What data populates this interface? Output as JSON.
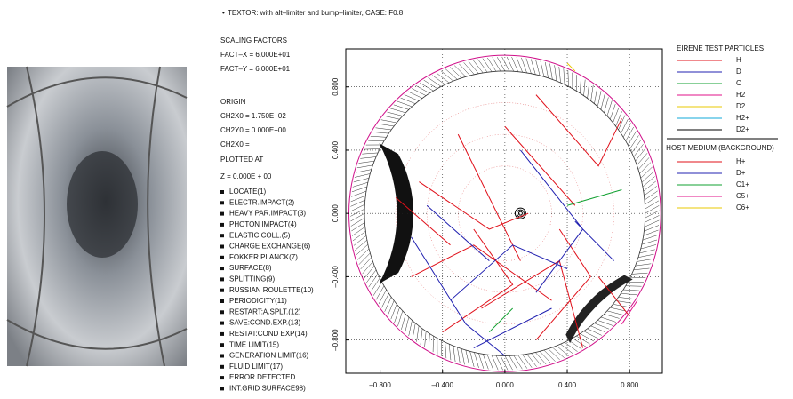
{
  "chart_data": {
    "type": "trajectory",
    "title": "TEXTOR: with alt–limiter and bump–limiter, CASE: F0.8",
    "xlim": [
      -1.02,
      1.01
    ],
    "ylim": [
      -1.01,
      1.04
    ],
    "xticks": [
      {
        "value": -0.8,
        "label": "–0.800"
      },
      {
        "value": -0.4,
        "label": "–0.400"
      },
      {
        "value": 0,
        "label": "0.000"
      },
      {
        "value": 0.4,
        "label": "0.400"
      },
      {
        "value": 0.8,
        "label": "0.800"
      }
    ],
    "yticks": [
      {
        "value": -0.8,
        "label": "–0.800"
      },
      {
        "value": -0.4,
        "label": "–0.400"
      },
      {
        "value": 0,
        "label": "0.000"
      },
      {
        "value": 0.4,
        "label": "0.400"
      },
      {
        "value": 0.8,
        "label": "0.800"
      }
    ],
    "grid": true,
    "legend_title": "EIRENE TEST PARTICLES",
    "series": [
      {
        "name": "H",
        "color": "#e0101a",
        "x": [
          -0.55,
          -0.1,
          0.15,
          null,
          -0.6,
          -0.2,
          0.3,
          null,
          -0.3,
          0.1,
          null,
          0.2,
          0.6,
          0.75,
          null,
          -0.4,
          0.05,
          -0.2,
          null,
          0.35,
          0.55,
          0.2,
          null,
          -0.7,
          -0.35,
          null,
          0.0,
          0.45,
          null,
          0.6,
          0.8,
          null,
          -0.15,
          0.35,
          0.5
        ],
        "values": [
          0.2,
          -0.1,
          0.0,
          null,
          -0.4,
          -0.2,
          -0.55,
          null,
          0.5,
          -0.3,
          null,
          0.75,
          0.3,
          0.6,
          null,
          -0.75,
          -0.45,
          -0.1,
          null,
          -0.1,
          -0.4,
          -0.8,
          null,
          0.1,
          -0.2,
          null,
          0.55,
          0.05,
          null,
          -0.4,
          -0.65,
          null,
          -0.6,
          -0.3,
          -0.85
        ]
      },
      {
        "name": "D",
        "color": "#2020b0",
        "x": [
          -0.35,
          0.05,
          0.4,
          null,
          -0.5,
          -0.1,
          null,
          0.1,
          0.5,
          0.2,
          null,
          -0.2,
          0.3,
          null,
          0.45,
          0.7,
          null,
          -0.6,
          -0.25,
          0.0
        ],
        "values": [
          -0.55,
          -0.2,
          -0.35,
          null,
          0.05,
          -0.3,
          null,
          0.4,
          -0.1,
          -0.5,
          null,
          -0.85,
          -0.6,
          null,
          -0.05,
          -0.3,
          null,
          -0.15,
          -0.7,
          -0.9
        ]
      },
      {
        "name": "C",
        "color": "#10a030",
        "x": [
          0.4,
          0.75,
          null,
          -0.1,
          0.05
        ],
        "values": [
          0.05,
          0.15,
          null,
          -0.75,
          -0.6
        ]
      },
      {
        "name": "H2",
        "color": "#e0108a",
        "x": [
          0.75,
          0.85
        ],
        "values": [
          -0.7,
          -0.55
        ]
      },
      {
        "name": "D2",
        "color": "#e8c800",
        "x": [
          0.4,
          0.45
        ],
        "values": [
          0.95,
          0.9
        ]
      },
      {
        "name": "H2+",
        "color": "#10a8d8",
        "x": [],
        "values": []
      },
      {
        "name": "D2+",
        "color": "#000000",
        "x": [],
        "values": []
      }
    ],
    "host_medium": {
      "title": "HOST MEDIUM (BACKGROUND)",
      "items": [
        {
          "name": "H+",
          "color": "#e0101a"
        },
        {
          "name": "D+",
          "color": "#2020b0"
        },
        {
          "name": "C1+",
          "color": "#10a030"
        },
        {
          "name": "C5+",
          "color": "#e0108a"
        },
        {
          "name": "C6+",
          "color": "#e8c800"
        }
      ]
    }
  },
  "side_panel": {
    "lines": [
      "SCALING FACTORS",
      "FACT–X = 6.000E+01",
      "FACT–Y = 6.000E+01",
      "ORIGIN",
      "CH2X0 = 1.750E+02",
      "CH2Y0 = 0.000E+00",
      "CH2X0 =",
      "PLOTTED AT",
      "Z = 0.000E + 00"
    ],
    "events": [
      "LOCATE(1)",
      "ELECTR.IMPACT(2)",
      "HEAVY PAR.IMPACT(3)",
      "PHOTON IMPACT(4)",
      "ELASTIC COLL.(5)",
      "CHARGE EXCHANGE(6)",
      "FOKKER PLANCK(7)",
      "SURFACE(8)",
      "SPLITTING(9)",
      "RUSSIAN ROULETTE(10)",
      "PERIODICITY(11)",
      "RESTART:A.SPLT.(12)",
      "SAVE:COND.EXP.(13)",
      "RESTAT:COND EXP(14)",
      "TIME LIMIT(15)",
      "GENERATION LIMIT(16)",
      "FLUID LIMIT(17)",
      "ERROR DETECTED",
      "INT.GRID SURFACE98)"
    ]
  }
}
